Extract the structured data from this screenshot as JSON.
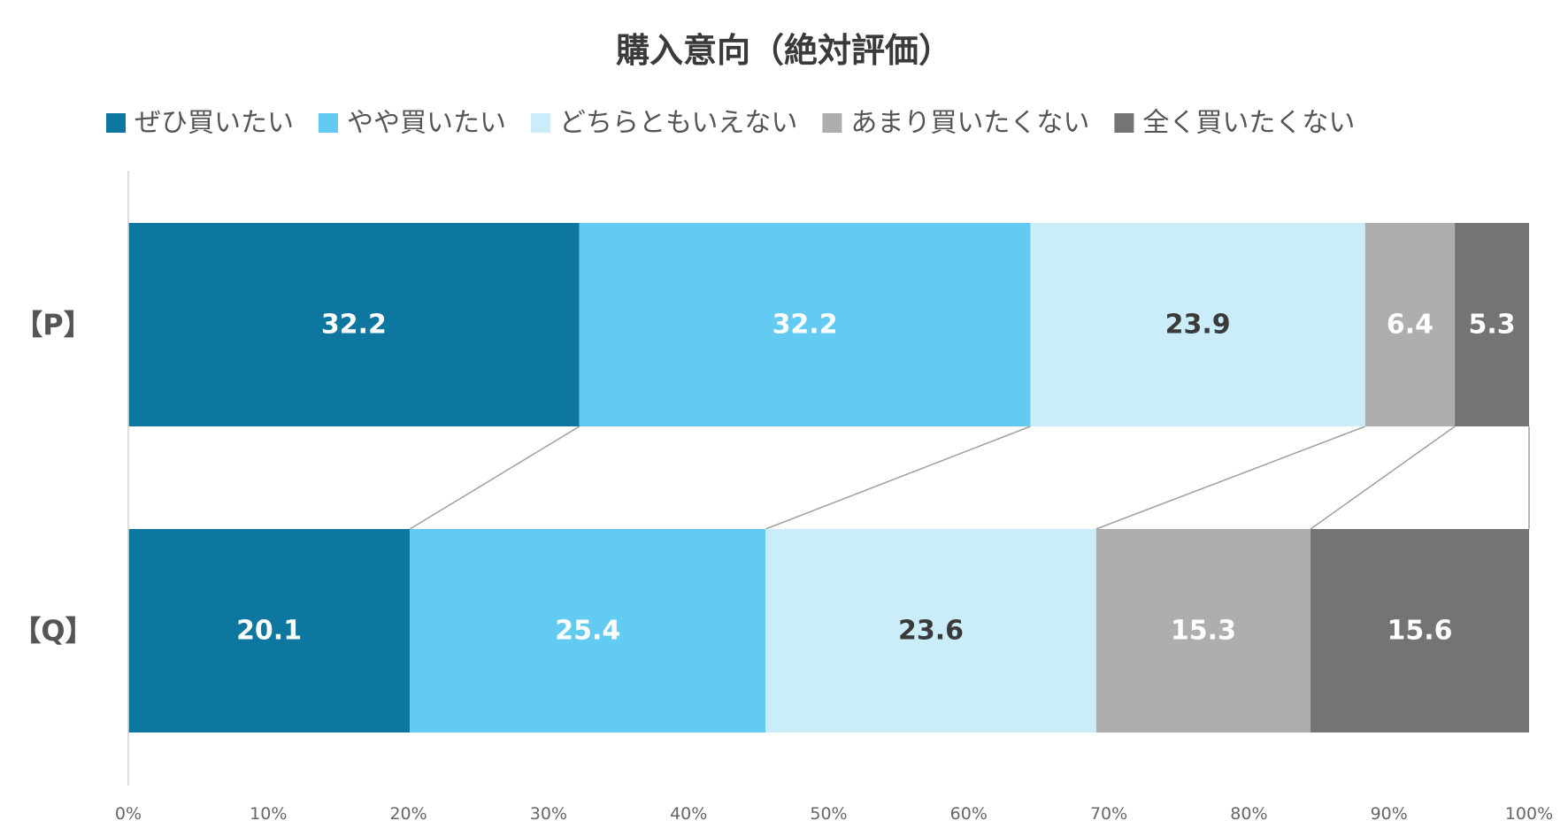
{
  "chart_data": {
    "type": "bar",
    "orientation": "horizontal",
    "stacked": "100%",
    "title": "購入意向（絶対評価）",
    "categories": [
      "【P】",
      "【Q】"
    ],
    "series": [
      {
        "name": "ぜひ買いたい",
        "color": "#0d77a0",
        "label_color": "#ffffff",
        "values": [
          32.2,
          20.1
        ]
      },
      {
        "name": "やや買いたい",
        "color": "#63cbf2",
        "label_color": "#ffffff",
        "values": [
          32.2,
          25.4
        ]
      },
      {
        "name": "どちらともいえない",
        "color": "#cbedfa",
        "label_color": "#3a3a3a",
        "values": [
          23.9,
          23.6
        ]
      },
      {
        "name": "あまり買いたくない",
        "color": "#aeaeae",
        "label_color": "#ffffff",
        "values": [
          6.4,
          15.3
        ]
      },
      {
        "name": "全く買いたくない",
        "color": "#747474",
        "label_color": "#ffffff",
        "values": [
          5.3,
          15.6
        ]
      }
    ],
    "x_ticks": [
      "0%",
      "10%",
      "20%",
      "30%",
      "40%",
      "50%",
      "60%",
      "70%",
      "80%",
      "90%",
      "100%"
    ],
    "xlim": [
      0,
      100
    ],
    "legend_position": "top",
    "grid": false,
    "connector_lines": true
  }
}
